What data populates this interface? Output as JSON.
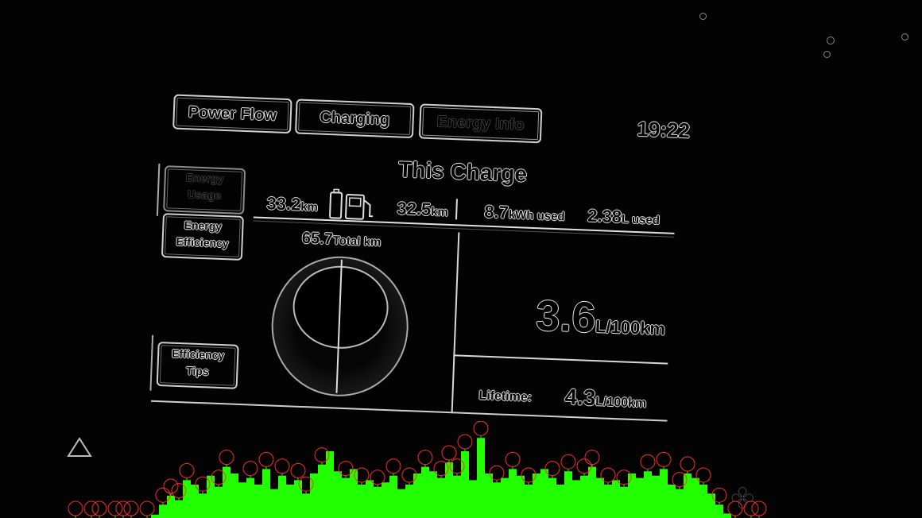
{
  "tabs": [
    {
      "label": "Power Flow",
      "active": false
    },
    {
      "label": "Charging",
      "active": false
    },
    {
      "label": "Energy Info",
      "active": true
    }
  ],
  "clock": "19:22",
  "sidebar": {
    "energy_usage": [
      "Energy",
      "Usage"
    ],
    "energy_efficiency": [
      "Energy",
      "Efficiency"
    ],
    "efficiency_tips": [
      "Efficiency",
      "Tips"
    ]
  },
  "main": {
    "title": "This Charge",
    "electric_distance": {
      "value": "33.2",
      "unit": "km"
    },
    "fuel_distance": {
      "value": "32.5",
      "unit": "km"
    },
    "energy_used": {
      "value": "8.7",
      "unit": "kWh used"
    },
    "fuel_used": {
      "value": "2.38",
      "unit": "L used"
    },
    "total": {
      "value": "65.7",
      "unit": "Total km"
    },
    "consumption": {
      "value": "3.6",
      "unit": "L/100km"
    },
    "lifetime": {
      "label": "Lifetime:",
      "value": "4.3",
      "unit": "L/100km"
    }
  },
  "colors": {
    "histogram": "#22ff00",
    "peak_marker": "#ff2a2a"
  },
  "histogram": {
    "heights": [
      0,
      0,
      0,
      0,
      0,
      0,
      0,
      0,
      0,
      0,
      0,
      0,
      0,
      0,
      0,
      0,
      0,
      0,
      0,
      3,
      12,
      20,
      16,
      34,
      30,
      22,
      38,
      28,
      46,
      40,
      32,
      36,
      30,
      44,
      26,
      38,
      30,
      34,
      22,
      40,
      48,
      60,
      42,
      36,
      44,
      30,
      34,
      28,
      32,
      38,
      26,
      30,
      40,
      46,
      42,
      36,
      50,
      38,
      60,
      34,
      72,
      40,
      32,
      36,
      44,
      38,
      30,
      40,
      44,
      36,
      30,
      42,
      34,
      38,
      46,
      36,
      30,
      34,
      28,
      40,
      36,
      42,
      38,
      44,
      30,
      26,
      40,
      36,
      30,
      22,
      12,
      4,
      0,
      0,
      0,
      0,
      0,
      0,
      0,
      0,
      0,
      0,
      0,
      0,
      0,
      0,
      0,
      0,
      0,
      0,
      0,
      0,
      0,
      0,
      0,
      0
    ],
    "peaks": [
      9,
      11,
      12,
      14,
      15,
      16,
      18,
      20,
      21,
      22,
      23,
      25,
      27,
      28,
      31,
      33,
      35,
      37,
      38,
      40,
      43,
      45,
      47,
      49,
      51,
      53,
      55,
      56,
      57,
      58,
      60,
      62,
      64,
      66,
      69,
      71,
      73,
      74,
      76,
      78,
      81,
      83,
      85,
      86,
      88,
      90,
      92,
      94,
      95
    ]
  }
}
